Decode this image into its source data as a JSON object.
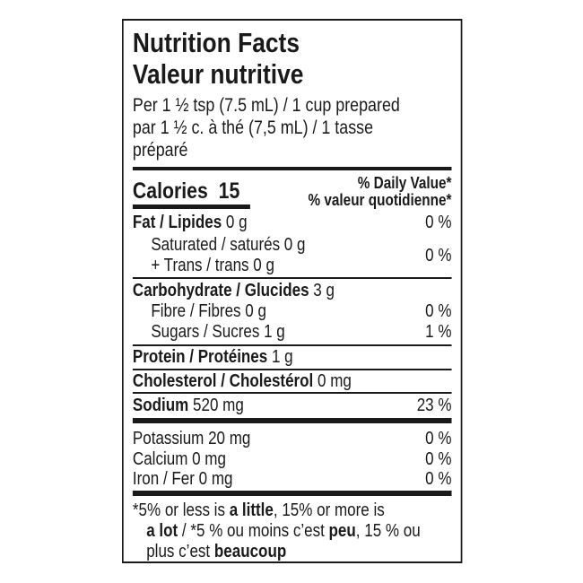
{
  "title_en": "Nutrition Facts",
  "title_fr": "Valeur nutritive",
  "serving": [
    "Per 1 ½ tsp (7.5 mL) / 1 cup prepared",
    "par 1 ½ c. à thé (7,5 mL) / 1 tasse",
    "préparé"
  ],
  "calories": {
    "label": "Calories",
    "value": "15"
  },
  "dv_header": [
    "% Daily Value*",
    "% valeur quotidienne*"
  ],
  "rows": {
    "fat": {
      "label": "Fat / Lipides",
      "amount": "0 g",
      "dv": "0 %"
    },
    "saturated": {
      "label": "Saturated / saturés 0 g"
    },
    "trans": {
      "label": "+ Trans / trans 0 g",
      "dv": "0 %"
    },
    "carb": {
      "label": "Carbohydrate / Glucides",
      "amount": "3 g"
    },
    "fibre": {
      "label": "Fibre / Fibres 0 g",
      "dv": "0 %"
    },
    "sugars": {
      "label": "Sugars / Sucres 1 g",
      "dv": "1 %"
    },
    "protein": {
      "label": "Protein / Protéines",
      "amount": "1 g"
    },
    "cholesterol": {
      "label": "Cholesterol / Cholestérol",
      "amount": "0 mg"
    },
    "sodium": {
      "label": "Sodium",
      "amount": "520 mg",
      "dv": "23 %"
    },
    "potassium": {
      "label": "Potassium 20 mg",
      "dv": "0 %"
    },
    "calcium": {
      "label": "Calcium 0 mg",
      "dv": "0 %"
    },
    "iron": {
      "label": "Iron / Fer 0 mg",
      "dv": "0 %"
    }
  },
  "footnote": {
    "l1a": "*5% or less is ",
    "l1b": "a little",
    "l1c": ", 15% or more is",
    "l2a": "a lot",
    "l2b": " / *5 % ou moins c’est ",
    "l2c": "peu",
    "l2d": ", 15 % ou",
    "l3a": "plus c’est ",
    "l3b": "beaucoup"
  }
}
